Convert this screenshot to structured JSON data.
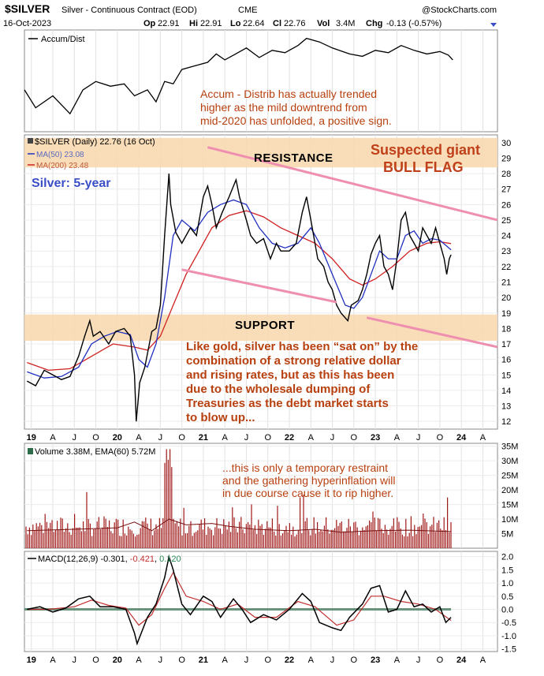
{
  "header": {
    "symbol": "$SILVER",
    "description": "Silver - Continuous Contract (EOD)",
    "exchange": "CME",
    "brand": "@StockCharts.com",
    "date": "16-Oct-2023",
    "ohlc": {
      "open_label": "Op",
      "open": "22.91",
      "high_label": "Hi",
      "high": "22.91",
      "low_label": "Lo",
      "low": "22.64",
      "close_label": "Cl",
      "close": "22.76",
      "vol_label": "Vol",
      "vol": "3.4M",
      "chg_label": "Chg",
      "chg": "-0.13 (-0.57%)"
    }
  },
  "colors": {
    "price": "#000000",
    "ma50": "#2030c0",
    "ma200": "#d02020",
    "band": "#f7d9b0",
    "trendline": "#ef8fb0",
    "volume": "#a01818",
    "macd_hist": "#2e6b4a",
    "annotation": "#b8400f",
    "title_blue": "#3a4fc7"
  },
  "x_axis_labels": [
    "19",
    "A",
    "J",
    "O",
    "20",
    "A",
    "J",
    "O",
    "21",
    "A",
    "J",
    "O",
    "22",
    "A",
    "J",
    "O",
    "23",
    "A",
    "J",
    "O",
    "24",
    "A"
  ],
  "chart_data": [
    {
      "panel": "accum_dist",
      "type": "line",
      "title": "Accum/Dist",
      "x_range": [
        2018.92,
        2024.42
      ],
      "points": [
        [
          2018.92,
          0.55
        ],
        [
          2019.05,
          0.4
        ],
        [
          2019.25,
          0.5
        ],
        [
          2019.45,
          0.35
        ],
        [
          2019.6,
          0.55
        ],
        [
          2019.75,
          0.62
        ],
        [
          2019.92,
          0.58
        ],
        [
          2020.08,
          0.6
        ],
        [
          2020.2,
          0.5
        ],
        [
          2020.35,
          0.55
        ],
        [
          2020.45,
          0.45
        ],
        [
          2020.55,
          0.62
        ],
        [
          2020.65,
          0.6
        ],
        [
          2020.75,
          0.72
        ],
        [
          2020.9,
          0.75
        ],
        [
          2021.05,
          0.78
        ],
        [
          2021.15,
          0.85
        ],
        [
          2021.25,
          0.8
        ],
        [
          2021.35,
          0.84
        ],
        [
          2021.5,
          0.9
        ],
        [
          2021.65,
          0.82
        ],
        [
          2021.8,
          0.88
        ],
        [
          2021.95,
          0.86
        ],
        [
          2022.1,
          0.92
        ],
        [
          2022.2,
          0.98
        ],
        [
          2022.35,
          0.95
        ],
        [
          2022.5,
          0.9
        ],
        [
          2022.7,
          0.85
        ],
        [
          2022.85,
          0.83
        ],
        [
          2023.0,
          0.88
        ],
        [
          2023.15,
          0.86
        ],
        [
          2023.3,
          0.92
        ],
        [
          2023.45,
          0.88
        ],
        [
          2023.6,
          0.85
        ],
        [
          2023.75,
          0.87
        ],
        [
          2023.85,
          0.84
        ],
        [
          2023.9,
          0.8
        ]
      ]
    },
    {
      "panel": "price",
      "type": "line",
      "title": "$SILVER (Daily) 22.76 (16 Oct)",
      "series_labels": [
        "MA(50) 23.08",
        "MA(200) 23.48"
      ],
      "x_range": [
        2018.92,
        2024.42
      ],
      "ylim": [
        11.5,
        30.5
      ],
      "y_ticks": [
        12,
        13,
        14,
        15,
        16,
        17,
        18,
        19,
        20,
        21,
        22,
        23,
        24,
        25,
        26,
        27,
        28,
        29,
        30
      ],
      "price": [
        [
          2018.95,
          14.6
        ],
        [
          2019.05,
          14.3
        ],
        [
          2019.15,
          15.3
        ],
        [
          2019.25,
          15.0
        ],
        [
          2019.35,
          14.7
        ],
        [
          2019.45,
          14.9
        ],
        [
          2019.55,
          16.2
        ],
        [
          2019.62,
          17.5
        ],
        [
          2019.68,
          18.5
        ],
        [
          2019.72,
          17.5
        ],
        [
          2019.8,
          17.8
        ],
        [
          2019.9,
          17.0
        ],
        [
          2019.98,
          17.8
        ],
        [
          2020.08,
          18.0
        ],
        [
          2020.15,
          17.5
        ],
        [
          2020.2,
          15.0
        ],
        [
          2020.22,
          12.0
        ],
        [
          2020.26,
          14.5
        ],
        [
          2020.32,
          15.5
        ],
        [
          2020.4,
          17.8
        ],
        [
          2020.45,
          18.0
        ],
        [
          2020.5,
          19.5
        ],
        [
          2020.55,
          24.0
        ],
        [
          2020.6,
          28.0
        ],
        [
          2020.62,
          26.0
        ],
        [
          2020.68,
          24.2
        ],
        [
          2020.75,
          23.5
        ],
        [
          2020.85,
          24.5
        ],
        [
          2020.92,
          24.0
        ],
        [
          2021.0,
          26.5
        ],
        [
          2021.05,
          27.2
        ],
        [
          2021.1,
          26.0
        ],
        [
          2021.15,
          24.5
        ],
        [
          2021.22,
          25.5
        ],
        [
          2021.3,
          26.5
        ],
        [
          2021.38,
          27.6
        ],
        [
          2021.42,
          26.5
        ],
        [
          2021.5,
          25.0
        ],
        [
          2021.55,
          24.0
        ],
        [
          2021.62,
          23.5
        ],
        [
          2021.7,
          23.8
        ],
        [
          2021.78,
          22.5
        ],
        [
          2021.85,
          23.5
        ],
        [
          2021.9,
          23.0
        ],
        [
          2022.0,
          23.0
        ],
        [
          2022.08,
          23.5
        ],
        [
          2022.15,
          25.5
        ],
        [
          2022.2,
          26.5
        ],
        [
          2022.25,
          25.0
        ],
        [
          2022.33,
          22.5
        ],
        [
          2022.4,
          22.0
        ],
        [
          2022.45,
          21.0
        ],
        [
          2022.5,
          20.5
        ],
        [
          2022.55,
          19.5
        ],
        [
          2022.6,
          19.0
        ],
        [
          2022.68,
          18.5
        ],
        [
          2022.72,
          19.5
        ],
        [
          2022.8,
          19.8
        ],
        [
          2022.85,
          20.5
        ],
        [
          2022.9,
          21.5
        ],
        [
          2022.95,
          22.8
        ],
        [
          2023.0,
          23.5
        ],
        [
          2023.05,
          24.0
        ],
        [
          2023.1,
          22.0
        ],
        [
          2023.15,
          21.5
        ],
        [
          2023.2,
          20.5
        ],
        [
          2023.25,
          22.5
        ],
        [
          2023.3,
          25.0
        ],
        [
          2023.35,
          25.5
        ],
        [
          2023.4,
          24.0
        ],
        [
          2023.45,
          23.5
        ],
        [
          2023.5,
          23.0
        ],
        [
          2023.55,
          24.5
        ],
        [
          2023.6,
          24.0
        ],
        [
          2023.65,
          23.5
        ],
        [
          2023.7,
          24.5
        ],
        [
          2023.75,
          23.5
        ],
        [
          2023.8,
          22.5
        ],
        [
          2023.83,
          21.5
        ],
        [
          2023.86,
          22.5
        ],
        [
          2023.88,
          22.76
        ]
      ],
      "ma50": [
        [
          2018.95,
          15.2
        ],
        [
          2019.15,
          14.8
        ],
        [
          2019.35,
          14.9
        ],
        [
          2019.55,
          15.5
        ],
        [
          2019.7,
          17.0
        ],
        [
          2019.85,
          17.5
        ],
        [
          2020.0,
          17.8
        ],
        [
          2020.15,
          17.6
        ],
        [
          2020.25,
          16.0
        ],
        [
          2020.35,
          15.5
        ],
        [
          2020.45,
          17.0
        ],
        [
          2020.55,
          20.0
        ],
        [
          2020.65,
          24.0
        ],
        [
          2020.75,
          25.0
        ],
        [
          2020.9,
          24.3
        ],
        [
          2021.05,
          25.5
        ],
        [
          2021.2,
          26.0
        ],
        [
          2021.35,
          26.3
        ],
        [
          2021.5,
          26.0
        ],
        [
          2021.65,
          24.5
        ],
        [
          2021.8,
          23.5
        ],
        [
          2021.95,
          23.2
        ],
        [
          2022.1,
          23.5
        ],
        [
          2022.25,
          24.5
        ],
        [
          2022.35,
          23.5
        ],
        [
          2022.5,
          21.5
        ],
        [
          2022.65,
          19.5
        ],
        [
          2022.75,
          19.3
        ],
        [
          2022.85,
          20.0
        ],
        [
          2022.95,
          21.5
        ],
        [
          2023.05,
          23.0
        ],
        [
          2023.15,
          22.5
        ],
        [
          2023.25,
          22.5
        ],
        [
          2023.35,
          24.0
        ],
        [
          2023.45,
          24.3
        ],
        [
          2023.55,
          23.5
        ],
        [
          2023.65,
          23.8
        ],
        [
          2023.75,
          23.7
        ],
        [
          2023.88,
          23.08
        ]
      ],
      "ma200": [
        [
          2018.95,
          15.8
        ],
        [
          2019.2,
          15.3
        ],
        [
          2019.45,
          15.4
        ],
        [
          2019.7,
          16.2
        ],
        [
          2019.95,
          17.0
        ],
        [
          2020.2,
          16.8
        ],
        [
          2020.35,
          16.6
        ],
        [
          2020.5,
          17.5
        ],
        [
          2020.65,
          19.5
        ],
        [
          2020.8,
          21.5
        ],
        [
          2020.95,
          23.0
        ],
        [
          2021.1,
          24.5
        ],
        [
          2021.3,
          25.3
        ],
        [
          2021.5,
          25.6
        ],
        [
          2021.7,
          25.2
        ],
        [
          2021.9,
          24.5
        ],
        [
          2022.1,
          24.0
        ],
        [
          2022.3,
          23.5
        ],
        [
          2022.5,
          22.5
        ],
        [
          2022.7,
          21.2
        ],
        [
          2022.85,
          20.8
        ],
        [
          2023.0,
          21.2
        ],
        [
          2023.2,
          22.0
        ],
        [
          2023.4,
          23.0
        ],
        [
          2023.6,
          23.5
        ],
        [
          2023.75,
          23.6
        ],
        [
          2023.88,
          23.48
        ]
      ],
      "resistance_band": [
        28.4,
        30.3
      ],
      "support_band": [
        17.2,
        18.9
      ],
      "upper_trendline": [
        [
          2021.05,
          29.7
        ],
        [
          2024.42,
          25.0
        ]
      ],
      "lower_trendline_left": [
        [
          2020.75,
          21.8
        ],
        [
          2022.55,
          19.7
        ]
      ],
      "lower_trendline_right": [
        [
          2022.9,
          18.7
        ],
        [
          2024.42,
          16.8
        ]
      ]
    },
    {
      "panel": "volume",
      "type": "bar",
      "title": "Volume 3.38M, EMA(60) 5.72M",
      "x_range": [
        2018.92,
        2024.42
      ],
      "ylim": [
        0,
        36
      ],
      "y_ticks": [
        "5M",
        "10M",
        "15M",
        "20M",
        "25M",
        "30M",
        "35M"
      ],
      "y_tick_values": [
        5,
        10,
        15,
        20,
        25,
        30,
        35
      ],
      "ema60": [
        [
          2018.95,
          6.0
        ],
        [
          2019.5,
          6.5
        ],
        [
          2020.0,
          7.0
        ],
        [
          2020.2,
          9.0
        ],
        [
          2020.4,
          6.0
        ],
        [
          2020.6,
          10.0
        ],
        [
          2020.8,
          8.0
        ],
        [
          2021.1,
          8.5
        ],
        [
          2021.3,
          7.5
        ],
        [
          2021.6,
          6.5
        ],
        [
          2022.0,
          6.0
        ],
        [
          2022.3,
          6.5
        ],
        [
          2022.6,
          5.5
        ],
        [
          2023.0,
          6.0
        ],
        [
          2023.4,
          6.2
        ],
        [
          2023.88,
          5.72
        ]
      ]
    },
    {
      "panel": "macd",
      "type": "line",
      "title": "MACD(12,26,9) -0.301, -0.421, 0.120",
      "series_labels": [
        "MACD(12,26,9) -0.301",
        "-0.421",
        "0.120"
      ],
      "x_range": [
        2018.92,
        2024.42
      ],
      "ylim": [
        -1.6,
        2.2
      ],
      "y_ticks": [
        -1.5,
        -1.0,
        -0.5,
        0.0,
        0.5,
        1.0,
        1.5,
        2.0
      ],
      "macd": [
        [
          2018.95,
          0.0
        ],
        [
          2019.1,
          0.1
        ],
        [
          2019.25,
          -0.1
        ],
        [
          2019.4,
          0.05
        ],
        [
          2019.55,
          0.4
        ],
        [
          2019.68,
          0.5
        ],
        [
          2019.8,
          0.1
        ],
        [
          2019.95,
          0.1
        ],
        [
          2020.1,
          0.0
        ],
        [
          2020.2,
          -0.9
        ],
        [
          2020.23,
          -1.3
        ],
        [
          2020.35,
          -0.3
        ],
        [
          2020.45,
          0.2
        ],
        [
          2020.55,
          1.2
        ],
        [
          2020.6,
          2.0
        ],
        [
          2020.65,
          1.5
        ],
        [
          2020.75,
          0.2
        ],
        [
          2020.85,
          -0.2
        ],
        [
          2021.0,
          0.5
        ],
        [
          2021.1,
          0.3
        ],
        [
          2021.2,
          -0.3
        ],
        [
          2021.35,
          0.4
        ],
        [
          2021.45,
          0.0
        ],
        [
          2021.55,
          -0.5
        ],
        [
          2021.7,
          -0.2
        ],
        [
          2021.85,
          -0.4
        ],
        [
          2022.0,
          0.0
        ],
        [
          2022.15,
          0.6
        ],
        [
          2022.25,
          0.3
        ],
        [
          2022.35,
          -0.5
        ],
        [
          2022.5,
          -0.7
        ],
        [
          2022.6,
          -0.8
        ],
        [
          2022.7,
          -0.3
        ],
        [
          2022.85,
          0.2
        ],
        [
          2022.95,
          0.8
        ],
        [
          2023.05,
          0.9
        ],
        [
          2023.15,
          -0.1
        ],
        [
          2023.25,
          0.0
        ],
        [
          2023.35,
          0.7
        ],
        [
          2023.45,
          0.1
        ],
        [
          2023.55,
          0.2
        ],
        [
          2023.65,
          -0.1
        ],
        [
          2023.75,
          0.1
        ],
        [
          2023.82,
          -0.5
        ],
        [
          2023.88,
          -0.3
        ]
      ],
      "signal": [
        [
          2018.95,
          0.0
        ],
        [
          2019.2,
          0.0
        ],
        [
          2019.5,
          0.1
        ],
        [
          2019.7,
          0.35
        ],
        [
          2019.9,
          0.15
        ],
        [
          2020.1,
          0.05
        ],
        [
          2020.25,
          -0.6
        ],
        [
          2020.4,
          -0.2
        ],
        [
          2020.55,
          0.8
        ],
        [
          2020.65,
          1.4
        ],
        [
          2020.8,
          0.5
        ],
        [
          2021.0,
          0.3
        ],
        [
          2021.2,
          0.0
        ],
        [
          2021.4,
          0.2
        ],
        [
          2021.6,
          -0.3
        ],
        [
          2021.85,
          -0.3
        ],
        [
          2022.1,
          0.3
        ],
        [
          2022.3,
          0.1
        ],
        [
          2022.55,
          -0.6
        ],
        [
          2022.75,
          -0.4
        ],
        [
          2022.95,
          0.5
        ],
        [
          2023.1,
          0.5
        ],
        [
          2023.3,
          0.3
        ],
        [
          2023.5,
          0.2
        ],
        [
          2023.7,
          0.0
        ],
        [
          2023.88,
          -0.42
        ]
      ]
    }
  ],
  "annotations": {
    "accum_note": [
      "Accum - Distrib has actually trended",
      "higher as the mild downtrend from",
      "mid-2020 has unfolded, a positive sign."
    ],
    "resistance": "RESISTANCE",
    "support": "SUPPORT",
    "bull_flag_1": "Suspected giant",
    "bull_flag_2": "BULL FLAG",
    "silver_title": "Silver: 5-year",
    "gold_note": [
      "Like gold, silver has been “sat on” by the",
      "combination of a strong relative dollar",
      "and rising rates, but as this has been",
      "due to the wholesale dumping of",
      "Treasuries as the debt market starts",
      "to blow up..."
    ],
    "volume_note": [
      "...this is only a temporary restraint",
      "and the gathering hyperinflation will",
      "in due course cause it to rip higher."
    ]
  }
}
